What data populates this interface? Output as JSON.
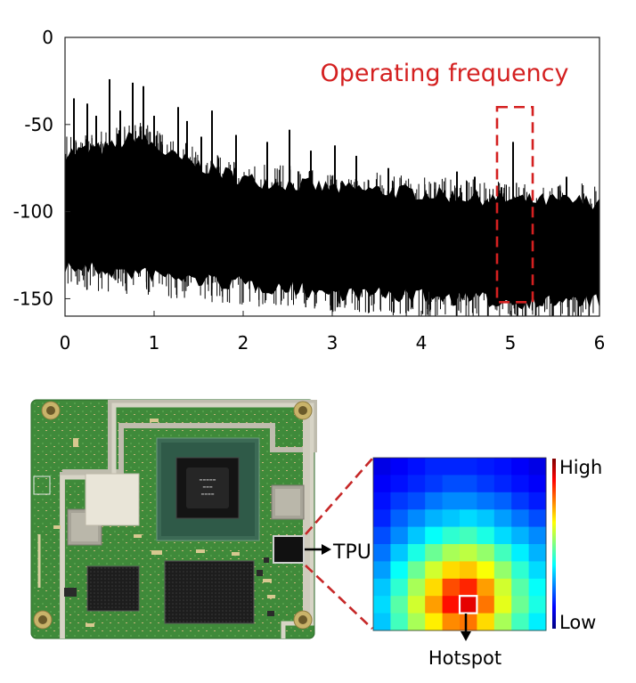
{
  "chart_data": {
    "type": "line",
    "title": "",
    "xlabel": "",
    "ylabel": "",
    "xlim": [
      0,
      6
    ],
    "ylim": [
      -160,
      0
    ],
    "x_ticks": [
      0,
      1,
      2,
      3,
      4,
      5,
      6
    ],
    "y_ticks": [
      0,
      -50,
      -100,
      -150
    ],
    "noise_floor": {
      "upper_envelope": [
        [
          0,
          -68
        ],
        [
          0.5,
          -65
        ],
        [
          0.8,
          -58
        ],
        [
          1.2,
          -70
        ],
        [
          2,
          -83
        ],
        [
          3,
          -88
        ],
        [
          4,
          -91
        ],
        [
          5,
          -95
        ],
        [
          6,
          -96
        ]
      ],
      "lower_envelope": [
        [
          0,
          -130
        ],
        [
          1,
          -135
        ],
        [
          2,
          -140
        ],
        [
          3,
          -145
        ],
        [
          4,
          -147
        ],
        [
          5,
          -150
        ],
        [
          6,
          -150
        ]
      ]
    },
    "peaks": [
      {
        "x": 0.1,
        "y": -35
      },
      {
        "x": 0.25,
        "y": -38
      },
      {
        "x": 0.35,
        "y": -45
      },
      {
        "x": 0.5,
        "y": -24
      },
      {
        "x": 0.62,
        "y": -42
      },
      {
        "x": 0.76,
        "y": -26
      },
      {
        "x": 0.88,
        "y": -28
      },
      {
        "x": 1.0,
        "y": -45
      },
      {
        "x": 1.27,
        "y": -40
      },
      {
        "x": 1.37,
        "y": -48
      },
      {
        "x": 1.53,
        "y": -57
      },
      {
        "x": 1.65,
        "y": -42
      },
      {
        "x": 1.92,
        "y": -56
      },
      {
        "x": 2.27,
        "y": -60
      },
      {
        "x": 2.52,
        "y": -53
      },
      {
        "x": 2.76,
        "y": -65
      },
      {
        "x": 3.03,
        "y": -62
      },
      {
        "x": 3.27,
        "y": -68
      },
      {
        "x": 3.63,
        "y": -75
      },
      {
        "x": 4.4,
        "y": -77
      },
      {
        "x": 4.6,
        "y": -80
      },
      {
        "x": 4.9,
        "y": -86
      },
      {
        "x": 5.03,
        "y": -60
      },
      {
        "x": 5.63,
        "y": -80
      }
    ],
    "annotation": {
      "text": "Operating frequency",
      "x_range": [
        4.85,
        5.25
      ],
      "y_range": [
        -152,
        -40
      ]
    }
  },
  "labels": {
    "tpu": "TPU",
    "hotspot": "Hotspot",
    "high": "High",
    "low": "Low"
  },
  "heatmap": {
    "rows": 10,
    "cols": 10,
    "colormap": "jet",
    "values": [
      [
        0.1,
        0.12,
        0.14,
        0.16,
        0.16,
        0.16,
        0.15,
        0.14,
        0.12,
        0.1
      ],
      [
        0.12,
        0.14,
        0.16,
        0.18,
        0.2,
        0.2,
        0.18,
        0.16,
        0.14,
        0.12
      ],
      [
        0.14,
        0.18,
        0.2,
        0.24,
        0.26,
        0.26,
        0.24,
        0.22,
        0.18,
        0.15
      ],
      [
        0.16,
        0.22,
        0.26,
        0.3,
        0.32,
        0.34,
        0.32,
        0.28,
        0.24,
        0.2
      ],
      [
        0.2,
        0.26,
        0.32,
        0.38,
        0.42,
        0.44,
        0.4,
        0.34,
        0.3,
        0.26
      ],
      [
        0.24,
        0.32,
        0.4,
        0.48,
        0.54,
        0.56,
        0.52,
        0.44,
        0.36,
        0.3
      ],
      [
        0.28,
        0.38,
        0.48,
        0.58,
        0.66,
        0.68,
        0.62,
        0.52,
        0.42,
        0.34
      ],
      [
        0.32,
        0.42,
        0.54,
        0.66,
        0.8,
        0.84,
        0.72,
        0.58,
        0.46,
        0.38
      ],
      [
        0.34,
        0.46,
        0.58,
        0.72,
        0.86,
        0.92,
        0.76,
        0.6,
        0.48,
        0.4
      ],
      [
        0.32,
        0.44,
        0.54,
        0.64,
        0.74,
        0.76,
        0.66,
        0.54,
        0.44,
        0.36
      ]
    ],
    "hotspot_cell": [
      8,
      5
    ]
  },
  "colors": {
    "accent": "#d42020",
    "hotspot": "#e60000",
    "board_green": "#3f8a3a",
    "frame_silver": "#c9c6b8",
    "chip_dark": "#1c1c1c"
  },
  "icons": {
    "tpu_arrow": "arrow-right-icon",
    "hotspot_arrow": "arrow-down-icon"
  }
}
